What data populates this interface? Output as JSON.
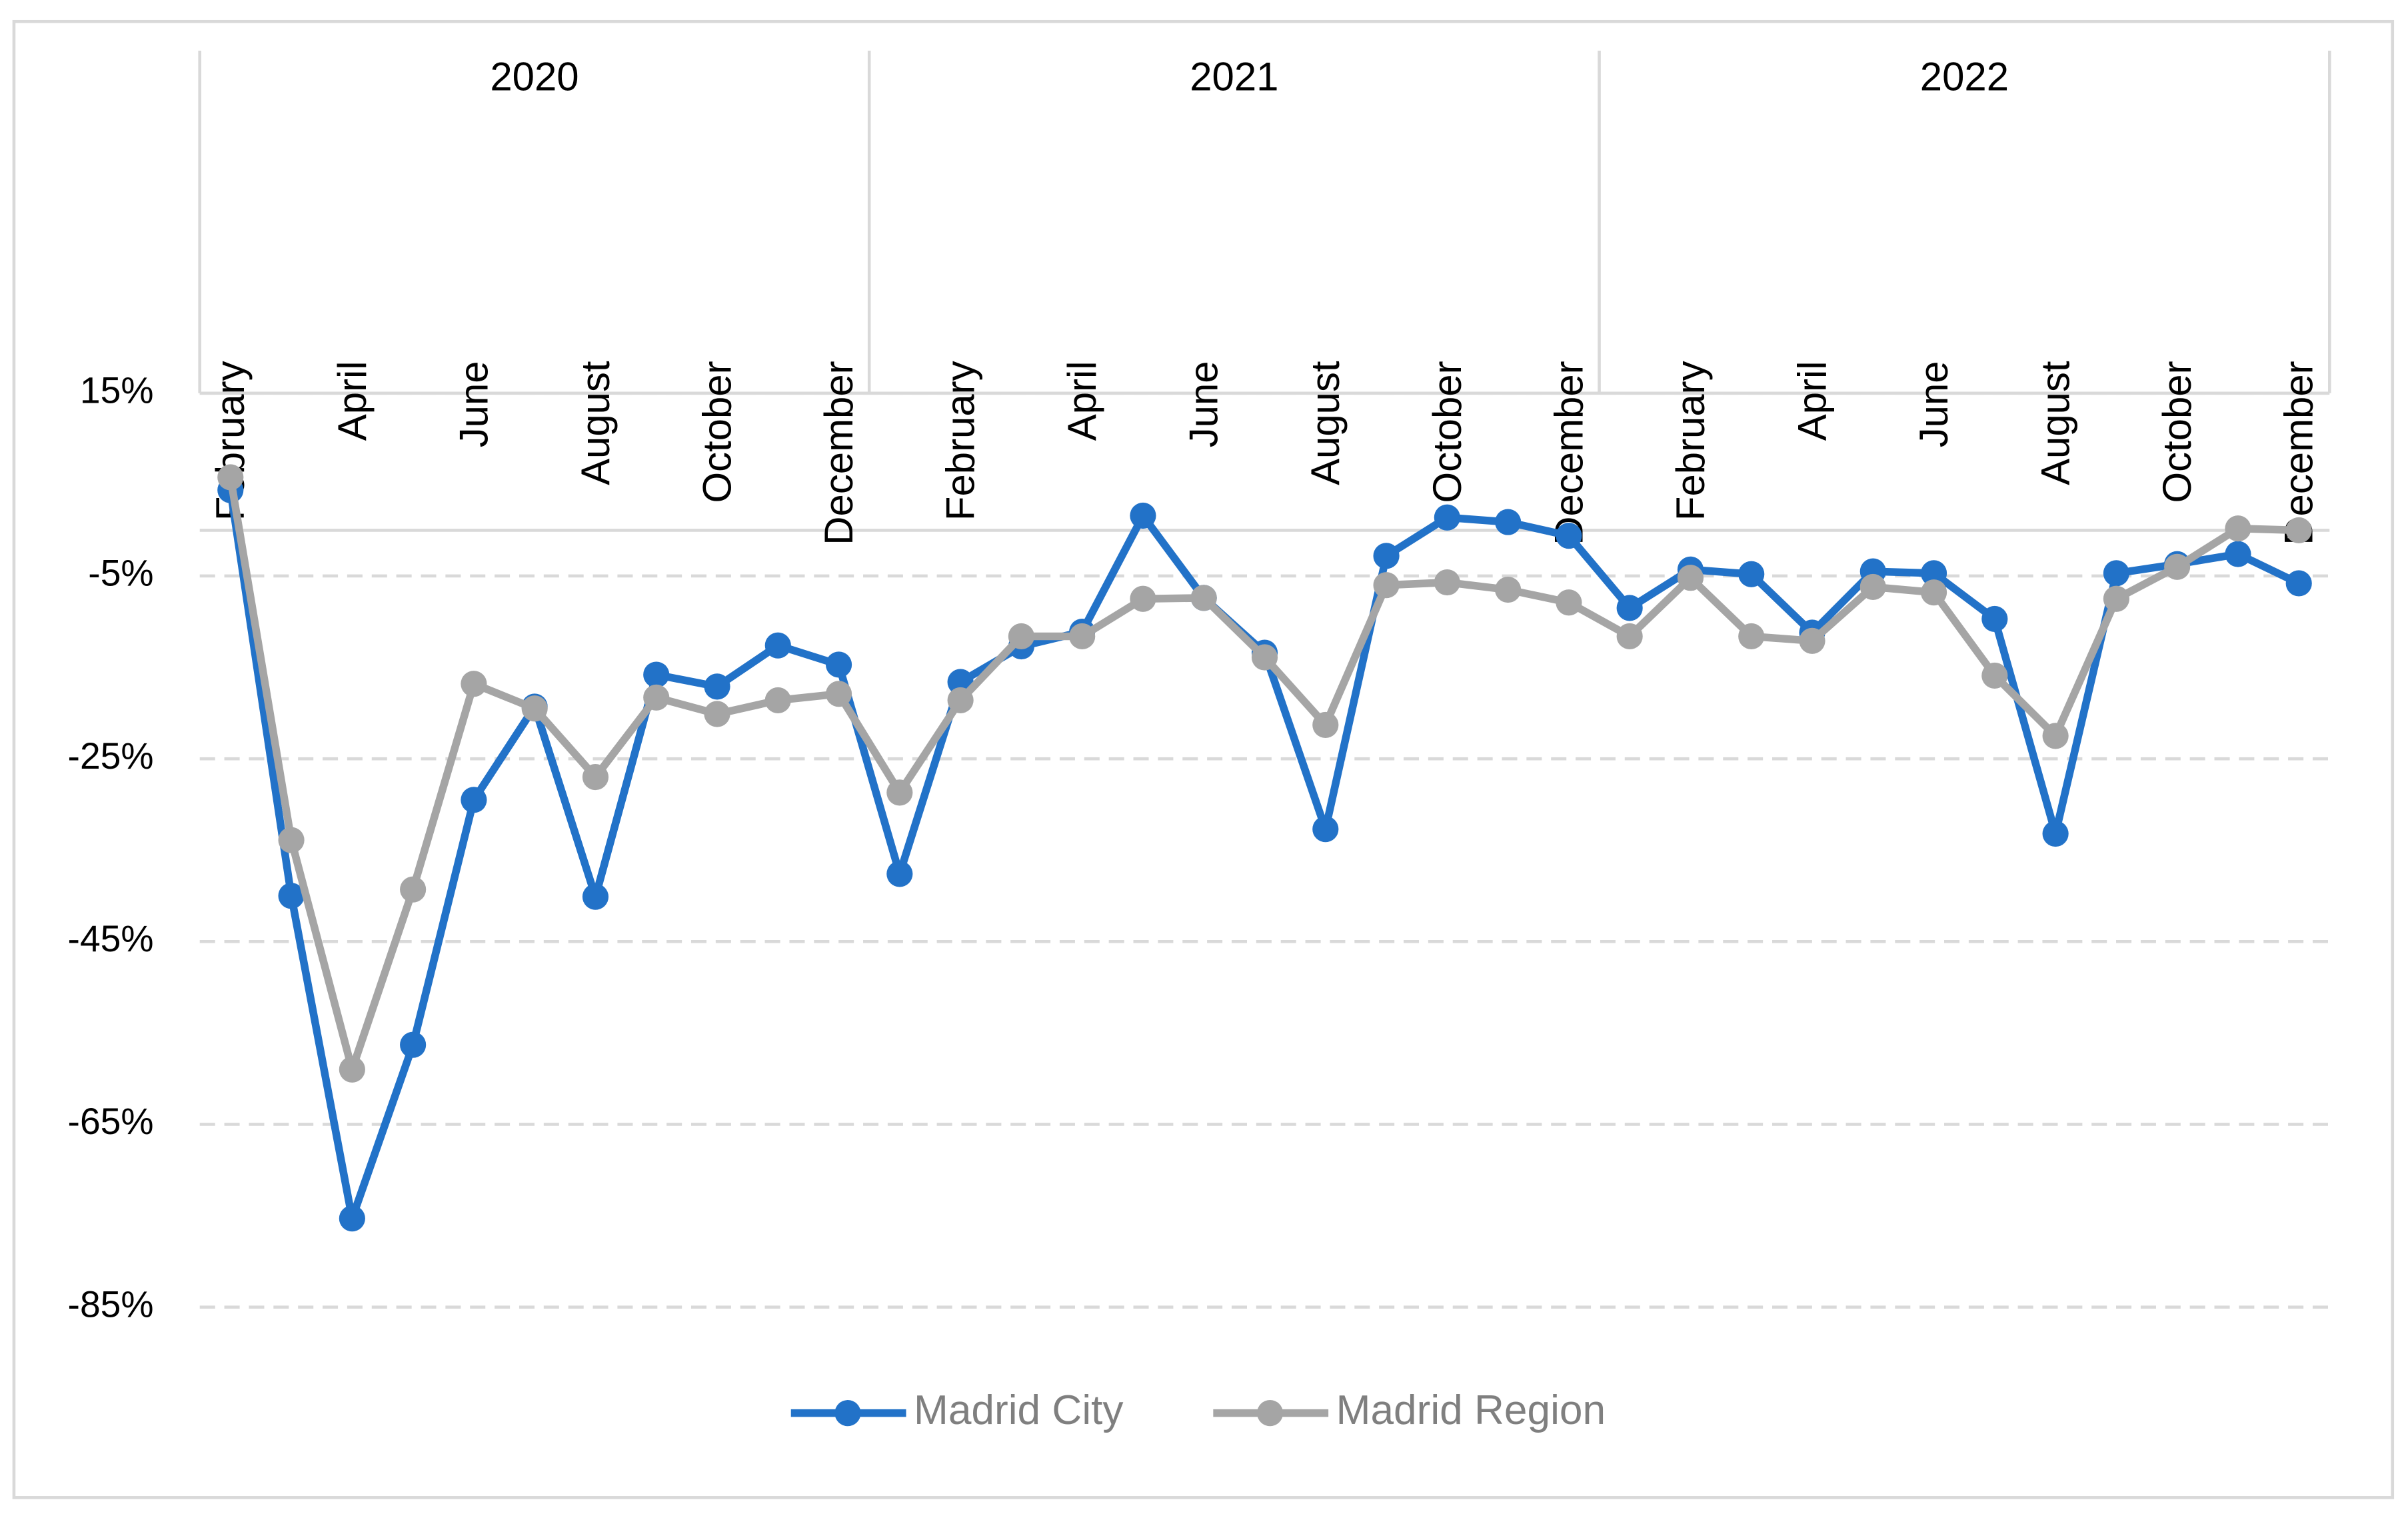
{
  "chart_data": {
    "type": "line",
    "years": [
      "2020",
      "2021",
      "2022"
    ],
    "categories": [
      "February",
      null,
      "April",
      null,
      "June",
      null,
      "August",
      null,
      "October",
      null,
      "December",
      null,
      "February",
      null,
      "April",
      null,
      "June",
      null,
      "August",
      null,
      "October",
      null,
      "December",
      null,
      "February",
      null,
      "April",
      null,
      "June",
      null,
      "August",
      null,
      "October",
      null,
      "December"
    ],
    "series": [
      {
        "name": "Madrid City",
        "color": "#2272c8",
        "values": [
          4.4,
          -40,
          -75.3,
          -56.3,
          -29.5,
          -19.3,
          -40.1,
          -15.8,
          -17.1,
          -12.6,
          -14.7,
          -37.6,
          -16.6,
          -12.7,
          -11.1,
          1.6,
          -7.4,
          -13.4,
          -32.7,
          -2.8,
          1.4,
          0.9,
          -0.6,
          -8.5,
          -4.3,
          -4.8,
          -11.2,
          -4.5,
          -4.7,
          -9.7,
          -33.2,
          -4.7,
          -3.7,
          -2.6,
          -5.8
        ]
      },
      {
        "name": "Madrid Region",
        "color": "#a5a5a5",
        "values": [
          5.8,
          -33.9,
          -59,
          -39.3,
          -16.8,
          -19.5,
          -27,
          -18.3,
          -20.1,
          -18.6,
          -17.9,
          -28.7,
          -18.6,
          -11.6,
          -11.6,
          -7.5,
          -7.4,
          -13.9,
          -21.3,
          -6,
          -5.7,
          -6.5,
          -7.9,
          -11.6,
          -5.2,
          -11.6,
          -12.1,
          -6.2,
          -6.8,
          -15.9,
          -22.5,
          -7.5,
          -4,
          0.2,
          0
        ]
      }
    ],
    "ylim": [
      -85,
      15
    ],
    "yticks": [
      {
        "value": 15,
        "label": "15%"
      },
      {
        "value": -5,
        "label": "-5%"
      },
      {
        "value": -25,
        "label": "-25%"
      },
      {
        "value": -45,
        "label": "-45%"
      },
      {
        "value": -65,
        "label": "-65%"
      },
      {
        "value": -85,
        "label": "-85%"
      }
    ],
    "grid": true,
    "legend": "bottom"
  }
}
